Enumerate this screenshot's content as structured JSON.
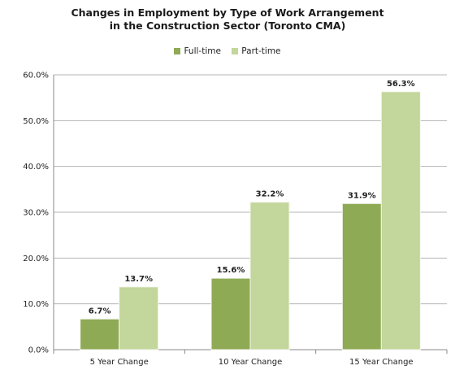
{
  "chart_data": {
    "type": "bar",
    "title_line1": "Changes in Employment by Type  of Work Arrangement",
    "title_line2": "in the Construction Sector (Toronto CMA)",
    "categories": [
      "5 Year Change",
      "10 Year Change",
      "15 Year Change"
    ],
    "series": [
      {
        "name": "Full-time",
        "color": "#8faa55",
        "values": [
          6.7,
          15.6,
          31.9
        ],
        "labels": [
          "6.7%",
          "15.6%",
          "31.9%"
        ]
      },
      {
        "name": "Part-time",
        "color": "#c3d69b",
        "values": [
          13.7,
          32.2,
          56.3
        ],
        "labels": [
          "13.7%",
          "32.2%",
          "56.3%"
        ]
      }
    ],
    "ylim": [
      0,
      60
    ],
    "yticks": [
      0,
      10,
      20,
      30,
      40,
      50,
      60
    ],
    "ytick_labels": [
      "0.0%",
      "10.0%",
      "20.0%",
      "30.0%",
      "40.0%",
      "50.0%",
      "60.0%"
    ],
    "grid": true,
    "legend_position": "top-center"
  }
}
